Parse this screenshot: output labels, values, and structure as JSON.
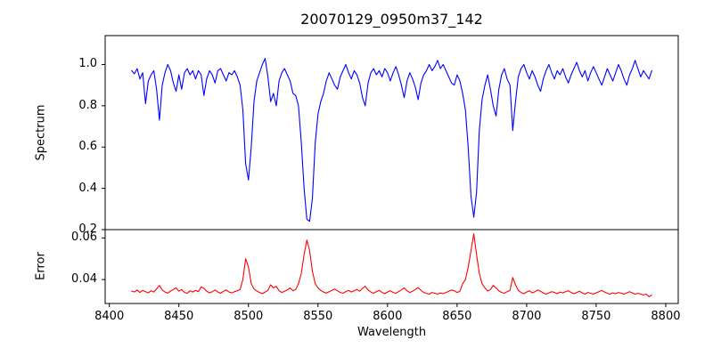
{
  "figure": {
    "background": "#ffffff",
    "frame_color": "#000000",
    "text_color": "#000000"
  },
  "chart_data": [
    {
      "type": "line",
      "title": "20070129_0950m37_142",
      "ylabel": "Spectrum",
      "xlim": [
        8397,
        8809
      ],
      "ylim": [
        0.2,
        1.14
      ],
      "grid": false,
      "legend": "none",
      "y_ticks": [
        0.2,
        0.4,
        0.6,
        0.8,
        1.0
      ],
      "y_tick_labels": [
        "0.2",
        "0.4",
        "0.6",
        "0.8",
        "1.0"
      ],
      "series": [
        {
          "name": "spectrum",
          "color": "#0000ff",
          "x_start": 8416,
          "x_step": 2,
          "values": [
            0.97,
            0.955,
            0.98,
            0.93,
            0.96,
            0.81,
            0.92,
            0.95,
            0.97,
            0.88,
            0.73,
            0.9,
            0.96,
            1.0,
            0.97,
            0.91,
            0.87,
            0.95,
            0.88,
            0.96,
            0.98,
            0.95,
            0.97,
            0.93,
            0.97,
            0.95,
            0.85,
            0.93,
            0.97,
            0.95,
            0.91,
            0.97,
            0.98,
            0.95,
            0.92,
            0.96,
            0.95,
            0.97,
            0.94,
            0.9,
            0.78,
            0.52,
            0.44,
            0.6,
            0.82,
            0.92,
            0.96,
            1.0,
            1.03,
            0.94,
            0.82,
            0.86,
            0.8,
            0.92,
            0.96,
            0.98,
            0.95,
            0.92,
            0.86,
            0.85,
            0.8,
            0.62,
            0.4,
            0.25,
            0.24,
            0.35,
            0.62,
            0.76,
            0.82,
            0.86,
            0.92,
            0.96,
            0.93,
            0.9,
            0.88,
            0.94,
            0.97,
            1.0,
            0.96,
            0.93,
            0.97,
            0.95,
            0.91,
            0.84,
            0.8,
            0.91,
            0.96,
            0.98,
            0.95,
            0.97,
            0.94,
            0.98,
            0.96,
            0.92,
            0.96,
            0.99,
            0.95,
            0.9,
            0.84,
            0.92,
            0.96,
            0.93,
            0.89,
            0.83,
            0.91,
            0.95,
            0.97,
            1.0,
            0.97,
            0.99,
            1.02,
            0.98,
            1.0,
            0.97,
            0.94,
            0.91,
            0.9,
            0.95,
            0.92,
            0.86,
            0.78,
            0.6,
            0.36,
            0.26,
            0.38,
            0.68,
            0.83,
            0.9,
            0.95,
            0.88,
            0.8,
            0.75,
            0.88,
            0.95,
            0.98,
            0.93,
            0.9,
            0.68,
            0.82,
            0.94,
            0.98,
            1.0,
            0.96,
            0.93,
            0.97,
            0.94,
            0.9,
            0.87,
            0.93,
            0.97,
            1.0,
            0.96,
            0.93,
            0.97,
            0.95,
            0.98,
            0.94,
            0.91,
            0.95,
            0.98,
            1.01,
            0.97,
            0.94,
            0.97,
            0.92,
            0.96,
            0.99,
            0.96,
            0.93,
            0.9,
            0.94,
            0.98,
            0.95,
            0.92,
            0.96,
            1.0,
            0.97,
            0.93,
            0.9,
            0.95,
            0.98,
            1.02,
            0.98,
            0.94,
            0.97,
            0.95,
            0.93,
            0.97
          ]
        }
      ],
      "annotations": "absorption lines near 8498, 8542, 8662"
    },
    {
      "type": "line",
      "ylabel": "Error",
      "xlabel": "Wavelength",
      "xlim": [
        8397,
        8809
      ],
      "ylim": [
        0.0285,
        0.064
      ],
      "grid": false,
      "legend": "none",
      "x_ticks": [
        8400,
        8450,
        8500,
        8550,
        8600,
        8650,
        8700,
        8750,
        8800
      ],
      "x_tick_labels": [
        "8400",
        "8450",
        "8500",
        "8550",
        "8600",
        "8650",
        "8700",
        "8750",
        "8800"
      ],
      "y_ticks": [
        0.04,
        0.06
      ],
      "y_tick_labels": [
        "0.04",
        "0.06"
      ],
      "series": [
        {
          "name": "error",
          "color": "#ff0000",
          "x_start": 8416,
          "x_step": 2,
          "values": [
            0.0345,
            0.034,
            0.035,
            0.0338,
            0.0348,
            0.0342,
            0.0336,
            0.0346,
            0.034,
            0.0355,
            0.0372,
            0.035,
            0.034,
            0.0335,
            0.0345,
            0.0352,
            0.036,
            0.0344,
            0.0352,
            0.0338,
            0.0334,
            0.0346,
            0.034,
            0.0348,
            0.0342,
            0.0365,
            0.0358,
            0.0344,
            0.0336,
            0.0342,
            0.035,
            0.034,
            0.0334,
            0.0344,
            0.035,
            0.034,
            0.0336,
            0.0342,
            0.0346,
            0.0352,
            0.04,
            0.05,
            0.046,
            0.038,
            0.0355,
            0.0345,
            0.0338,
            0.0332,
            0.034,
            0.0348,
            0.0375,
            0.036,
            0.0368,
            0.0346,
            0.0338,
            0.0344,
            0.035,
            0.036,
            0.0346,
            0.0352,
            0.038,
            0.043,
            0.052,
            0.059,
            0.054,
            0.044,
            0.038,
            0.036,
            0.0348,
            0.034,
            0.0335,
            0.0342,
            0.0348,
            0.0354,
            0.0346,
            0.0338,
            0.0334,
            0.0342,
            0.0348,
            0.034,
            0.0346,
            0.0352,
            0.0344,
            0.0358,
            0.0368,
            0.035,
            0.034,
            0.0334,
            0.0342,
            0.0348,
            0.0338,
            0.0332,
            0.034,
            0.0346,
            0.0338,
            0.0334,
            0.0342,
            0.035,
            0.036,
            0.0346,
            0.0338,
            0.0344,
            0.0352,
            0.0362,
            0.0348,
            0.0338,
            0.0334,
            0.033,
            0.0338,
            0.0334,
            0.033,
            0.0336,
            0.0332,
            0.0338,
            0.0344,
            0.035,
            0.0346,
            0.0338,
            0.0344,
            0.038,
            0.04,
            0.046,
            0.054,
            0.062,
            0.052,
            0.043,
            0.038,
            0.036,
            0.0345,
            0.0352,
            0.0372,
            0.036,
            0.0346,
            0.0338,
            0.0334,
            0.0342,
            0.0348,
            0.041,
            0.0375,
            0.0348,
            0.0338,
            0.0332,
            0.034,
            0.0346,
            0.0336,
            0.0342,
            0.035,
            0.0344,
            0.0336,
            0.033,
            0.0336,
            0.0342,
            0.0338,
            0.0332,
            0.034,
            0.0336,
            0.0342,
            0.0346,
            0.0338,
            0.0332,
            0.0338,
            0.0344,
            0.0336,
            0.033,
            0.0338,
            0.0334,
            0.033,
            0.0336,
            0.0342,
            0.0348,
            0.034,
            0.0334,
            0.033,
            0.0336,
            0.0332,
            0.0338,
            0.0334,
            0.033,
            0.0336,
            0.0342,
            0.0336,
            0.033,
            0.0334,
            0.033,
            0.0326,
            0.033,
            0.0318,
            0.0325
          ]
        }
      ],
      "annotations": "error peaks near 8498, 8542, 8662"
    }
  ]
}
